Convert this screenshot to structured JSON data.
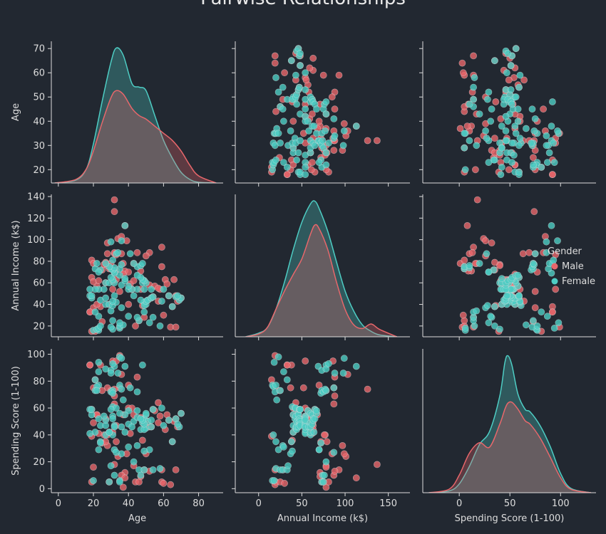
{
  "chart_data": {
    "type": "pairplot",
    "title": "Pairwise Relationships",
    "variables": [
      "Age",
      "Annual Income (k$)",
      "Spending Score (1-100)"
    ],
    "axis_ranges": {
      "Age": [
        -4,
        94
      ],
      "Annual Income (k$)": [
        -27,
        175
      ],
      "Spending Score (1-100)": [
        -36,
        135
      ]
    },
    "y_ranges": {
      "Age": [
        14.5,
        73
      ],
      "Annual Income (k$)": [
        10,
        142
      ],
      "Spending Score (1-100)": [
        -3,
        104
      ]
    },
    "ticks": {
      "Age": [
        0,
        20,
        40,
        60,
        80
      ],
      "Annual Income (k$)": [
        0,
        50,
        100,
        150
      ],
      "Spending Score (1-100)": [
        0,
        50,
        100
      ]
    },
    "y_ticks": {
      "Age": [
        20,
        30,
        40,
        50,
        60,
        70
      ],
      "Annual Income (k$)": [
        20,
        40,
        60,
        80,
        100,
        120,
        140
      ],
      "Spending Score (1-100)": [
        0,
        20,
        40,
        60,
        80,
        100
      ]
    },
    "hue": "Gender",
    "legend": {
      "title": "Gender",
      "position": "right",
      "entries": [
        "Male",
        "Female"
      ]
    },
    "colors": {
      "Male": "#e8676b",
      "Female": "#4ecdc4",
      "background": "#222831",
      "axis": "#dddddd"
    },
    "grid": false,
    "kde": {
      "Age": {
        "x": [
          -2,
          10,
          16,
          20,
          25,
          30,
          33,
          37,
          42,
          46,
          50,
          55,
          60,
          65,
          70,
          75,
          80,
          90
        ],
        "Female": [
          0,
          0.0008,
          0.004,
          0.011,
          0.023,
          0.034,
          0.038,
          0.036,
          0.028,
          0.027,
          0.026,
          0.019,
          0.012,
          0.007,
          0.003,
          0.001,
          0.0002,
          0
        ],
        "Male": [
          0,
          0.001,
          0.004,
          0.009,
          0.017,
          0.024,
          0.026,
          0.025,
          0.021,
          0.019,
          0.018,
          0.016,
          0.014,
          0.012,
          0.009,
          0.005,
          0.002,
          0
        ]
      },
      "Annual Income (k$)": {
        "x": [
          -15,
          0,
          10,
          20,
          30,
          40,
          50,
          60,
          65,
          70,
          80,
          90,
          100,
          110,
          120,
          130,
          140,
          160
        ],
        "Female": [
          0,
          0.0004,
          0.001,
          0.003,
          0.006,
          0.0095,
          0.0125,
          0.0145,
          0.0148,
          0.014,
          0.0115,
          0.0082,
          0.005,
          0.0028,
          0.0013,
          0.0006,
          0.0002,
          0
        ],
        "Male": [
          0,
          0.0003,
          0.001,
          0.003,
          0.005,
          0.0068,
          0.0085,
          0.0112,
          0.0122,
          0.0118,
          0.0095,
          0.006,
          0.003,
          0.0013,
          0.0009,
          0.0014,
          0.0008,
          0
        ]
      },
      "Spending Score (1-100)": {
        "x": [
          -30,
          -10,
          0,
          10,
          20,
          30,
          40,
          45,
          48,
          52,
          58,
          65,
          70,
          80,
          90,
          100,
          110,
          130
        ],
        "Female": [
          0,
          0.0002,
          0.001,
          0.003,
          0.0055,
          0.007,
          0.011,
          0.0148,
          0.0156,
          0.0145,
          0.0112,
          0.0095,
          0.0092,
          0.0076,
          0.0052,
          0.0022,
          0.0005,
          0
        ],
        "Male": [
          0,
          0.0004,
          0.002,
          0.0045,
          0.0057,
          0.0052,
          0.0078,
          0.0095,
          0.0102,
          0.0103,
          0.0095,
          0.0082,
          0.0078,
          0.0062,
          0.004,
          0.0017,
          0.0004,
          0
        ]
      }
    },
    "points": {
      "Male": [
        [
          19,
          15,
          39
        ],
        [
          21,
          15,
          81
        ],
        [
          64,
          19,
          3
        ],
        [
          67,
          19,
          14
        ],
        [
          18,
          33,
          92
        ],
        [
          48,
          39,
          36
        ],
        [
          40,
          40,
          60
        ],
        [
          65,
          38,
          35
        ],
        [
          37,
          78,
          1
        ],
        [
          22,
          57,
          55
        ],
        [
          32,
          137,
          18
        ],
        [
          59,
          93,
          14
        ],
        [
          19,
          65,
          59
        ],
        [
          25,
          72,
          34
        ],
        [
          44,
          20,
          5
        ],
        [
          53,
          46,
          46
        ],
        [
          35,
          52,
          75
        ],
        [
          70,
          46,
          56
        ],
        [
          46,
          25,
          5
        ],
        [
          42,
          54,
          60
        ],
        [
          27,
          60,
          52
        ],
        [
          57,
          43,
          64
        ],
        [
          29,
          73,
          5
        ],
        [
          33,
          63,
          47
        ],
        [
          66,
          63,
          50
        ],
        [
          20,
          61,
          49
        ],
        [
          28,
          87,
          75
        ],
        [
          38,
          71,
          12
        ],
        [
          24,
          38,
          92
        ],
        [
          49,
          62,
          48
        ],
        [
          59,
          75,
          5
        ],
        [
          47,
          71,
          9
        ],
        [
          19,
          81,
          5
        ],
        [
          43,
          78,
          17
        ],
        [
          36,
          87,
          10
        ],
        [
          45,
          88,
          83
        ],
        [
          30,
          78,
          73
        ],
        [
          26,
          77,
          40
        ],
        [
          38,
          113,
          8
        ],
        [
          52,
          88,
          13
        ],
        [
          28,
          76,
          40
        ],
        [
          34,
          101,
          24
        ],
        [
          39,
          99,
          26
        ],
        [
          50,
          85,
          26
        ],
        [
          61,
          63,
          44
        ],
        [
          31,
          61,
          42
        ],
        [
          20,
          37,
          75
        ],
        [
          58,
          54,
          54
        ],
        [
          23,
          62,
          41
        ],
        [
          54,
          47,
          59
        ],
        [
          68,
          43,
          46
        ],
        [
          52,
          58,
          46
        ],
        [
          41,
          59,
          41
        ],
        [
          32,
          87,
          63
        ],
        [
          22,
          40,
          55
        ],
        [
          40,
          70,
          77
        ],
        [
          55,
          57,
          58
        ],
        [
          62,
          59,
          55
        ],
        [
          33,
          72,
          35
        ],
        [
          37,
          68,
          55
        ],
        [
          28,
          97,
          32
        ],
        [
          63,
          48,
          51
        ],
        [
          67,
          48,
          52
        ],
        [
          32,
          88,
          69
        ],
        [
          18,
          33,
          92
        ],
        [
          31,
          54,
          95
        ],
        [
          25,
          24,
          73
        ],
        [
          35,
          19,
          99
        ],
        [
          43,
          62,
          55
        ],
        [
          20,
          78,
          16
        ],
        [
          27,
          79,
          35
        ],
        [
          36,
          103,
          85
        ],
        [
          47,
          54,
          53
        ],
        [
          60,
          30,
          4
        ],
        [
          57,
          55,
          49
        ],
        [
          33,
          86,
          95
        ],
        [
          51,
          44,
          50
        ],
        [
          29,
          40,
          42
        ],
        [
          49,
          28,
          14
        ],
        [
          32,
          126,
          74
        ]
      ],
      "Female": [
        [
          20,
          16,
          6
        ],
        [
          23,
          16,
          77
        ],
        [
          31,
          17,
          40
        ],
        [
          22,
          17,
          76
        ],
        [
          35,
          18,
          6
        ],
        [
          23,
          18,
          94
        ],
        [
          30,
          19,
          72
        ],
        [
          35,
          20,
          77
        ],
        [
          58,
          20,
          15
        ],
        [
          24,
          20,
          35
        ],
        [
          37,
          21,
          66
        ],
        [
          35,
          23,
          98
        ],
        [
          52,
          23,
          29
        ],
        [
          46,
          25,
          14
        ],
        [
          31,
          25,
          73
        ],
        [
          54,
          28,
          14
        ],
        [
          45,
          28,
          32
        ],
        [
          40,
          29,
          31
        ],
        [
          23,
          29,
          87
        ],
        [
          49,
          33,
          14
        ],
        [
          21,
          33,
          81
        ],
        [
          30,
          34,
          17
        ],
        [
          36,
          37,
          26
        ],
        [
          65,
          38,
          35
        ],
        [
          49,
          42,
          52
        ],
        [
          24,
          44,
          47
        ],
        [
          50,
          40,
          55
        ],
        [
          27,
          40,
          47
        ],
        [
          29,
          40,
          42
        ],
        [
          31,
          39,
          61
        ],
        [
          49,
          39,
          28
        ],
        [
          33,
          42,
          60
        ],
        [
          31,
          43,
          54
        ],
        [
          59,
          43,
          60
        ],
        [
          50,
          43,
          45
        ],
        [
          47,
          44,
          44
        ],
        [
          51,
          44,
          50
        ],
        [
          69,
          44,
          46
        ],
        [
          27,
          46,
          51
        ],
        [
          53,
          46,
          46
        ],
        [
          70,
          46,
          56
        ],
        [
          19,
          46,
          55
        ],
        [
          67,
          47,
          52
        ],
        [
          54,
          47,
          59
        ],
        [
          63,
          48,
          51
        ],
        [
          18,
          48,
          59
        ],
        [
          43,
          48,
          50
        ],
        [
          68,
          48,
          48
        ],
        [
          19,
          48,
          59
        ],
        [
          32,
          48,
          47
        ],
        [
          26,
          54,
          54
        ],
        [
          45,
          54,
          53
        ],
        [
          40,
          54,
          48
        ],
        [
          23,
          54,
          52
        ],
        [
          60,
          54,
          47
        ],
        [
          21,
          54,
          42
        ],
        [
          53,
          54,
          51
        ],
        [
          18,
          54,
          41
        ],
        [
          49,
          54,
          44
        ],
        [
          42,
          54,
          46
        ],
        [
          40,
          57,
          58
        ],
        [
          36,
          58,
          46
        ],
        [
          48,
          60,
          49
        ],
        [
          50,
          60,
          56
        ],
        [
          27,
          60,
          40
        ],
        [
          29,
          60,
          42
        ],
        [
          32,
          60,
          46
        ],
        [
          38,
          62,
          55
        ],
        [
          49,
          62,
          48
        ],
        [
          31,
          63,
          52
        ],
        [
          48,
          63,
          51
        ],
        [
          38,
          64,
          42
        ],
        [
          30,
          65,
          59
        ],
        [
          47,
          65,
          52
        ],
        [
          35,
          67,
          56
        ],
        [
          45,
          67,
          58
        ],
        [
          32,
          69,
          91
        ],
        [
          32,
          70,
          29
        ],
        [
          24,
          72,
          34
        ],
        [
          31,
          72,
          71
        ],
        [
          35,
          73,
          5
        ],
        [
          30,
          73,
          88
        ],
        [
          21,
          73,
          73
        ],
        [
          32,
          74,
          10
        ],
        [
          45,
          75,
          72
        ],
        [
          29,
          75,
          5
        ],
        [
          47,
          76,
          10
        ],
        [
          36,
          77,
          74
        ],
        [
          22,
          78,
          73
        ],
        [
          48,
          78,
          92
        ],
        [
          27,
          78,
          89
        ],
        [
          43,
          78,
          20
        ],
        [
          31,
          81,
          93
        ],
        [
          41,
          87,
          75
        ],
        [
          33,
          87,
          27
        ],
        [
          23,
          70,
          29
        ],
        [
          34,
          88,
          86
        ],
        [
          30,
          98,
          86
        ],
        [
          36,
          99,
          97
        ],
        [
          38,
          113,
          91
        ]
      ]
    }
  }
}
